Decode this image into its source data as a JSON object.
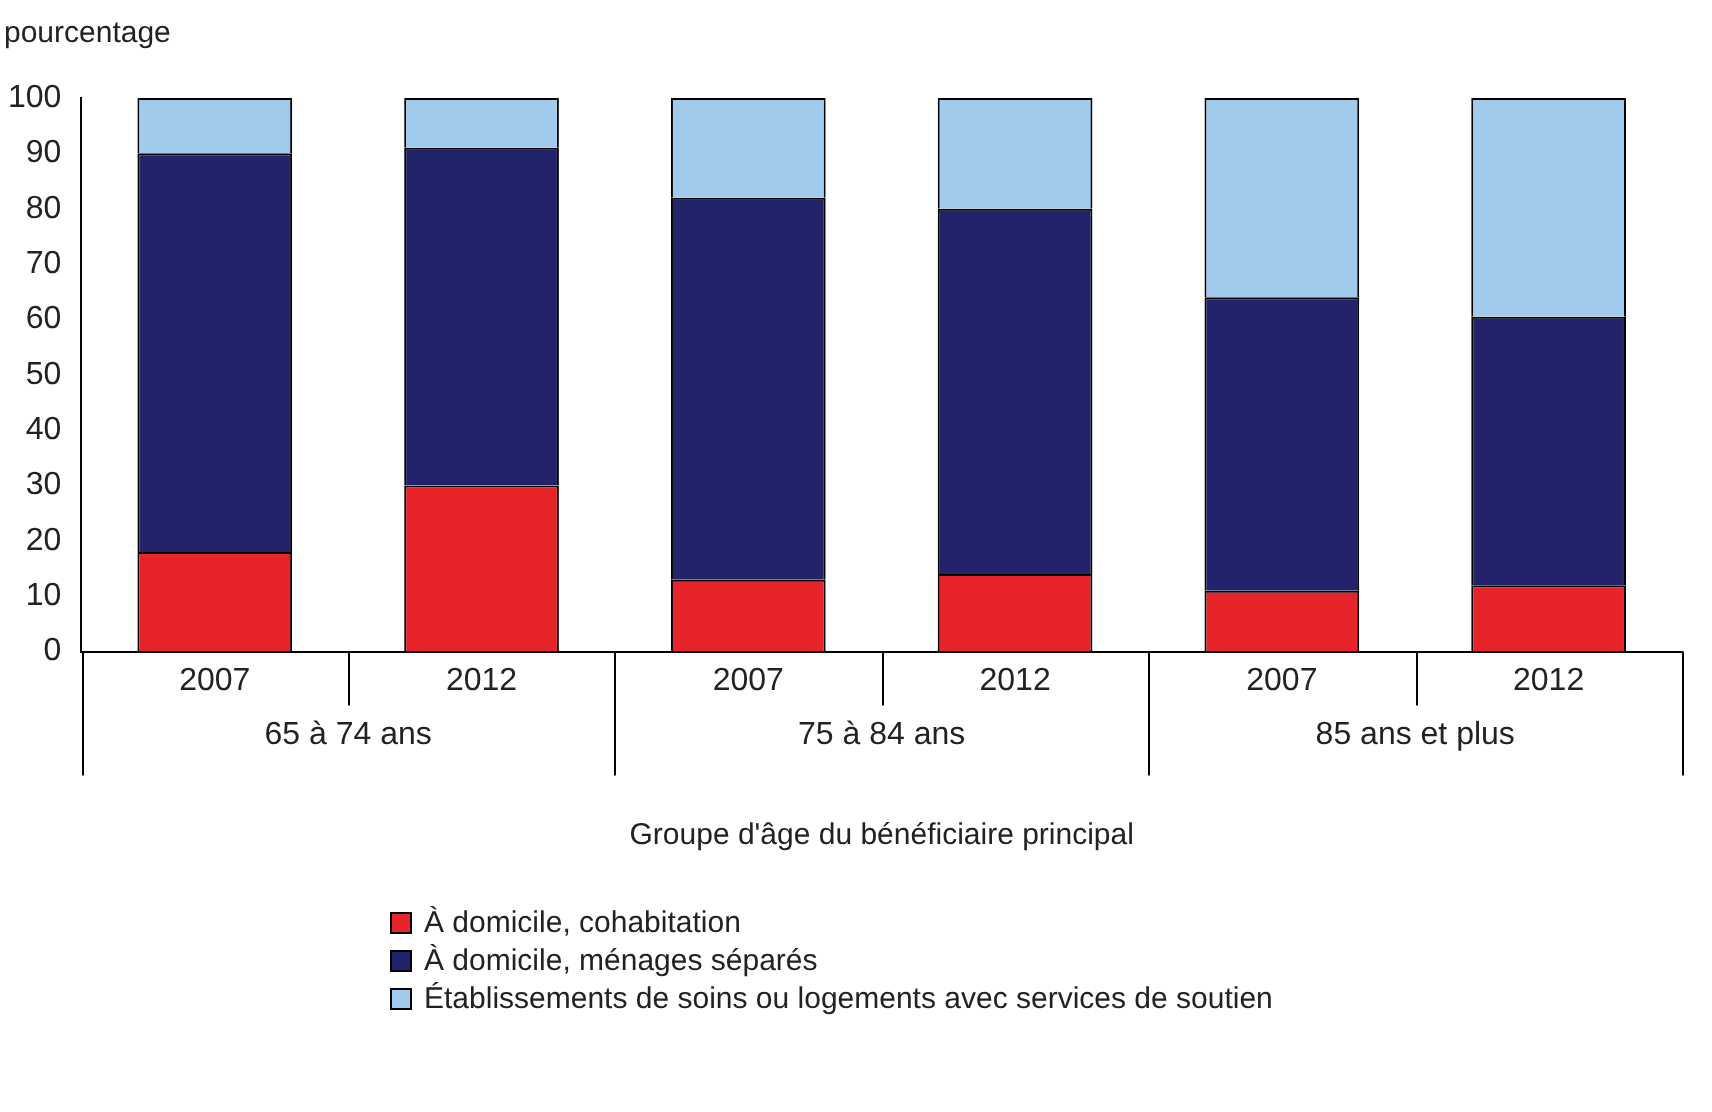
{
  "chart_data": {
    "type": "bar",
    "stacked": true,
    "ylabel": "pourcentage",
    "xlabel": "Groupe d'âge du bénéficiaire principal",
    "categories": [
      "2007",
      "2012",
      "2007",
      "2012",
      "2007",
      "2012"
    ],
    "annotations": [
      "65 à 74 ans",
      "75 à 84 ans",
      "85 ans et plus"
    ],
    "series": [
      {
        "name": "À domicile, cohabitation",
        "color": "#e8242b",
        "values": [
          18,
          30,
          13,
          14,
          11,
          12
        ]
      },
      {
        "name": "À domicile, ménages séparés",
        "color": "#22236b",
        "values": [
          72,
          61,
          69,
          66,
          53,
          48.5
        ]
      },
      {
        "name": "Établissements de soins ou logements avec services de soutien",
        "color": "#a0cbec",
        "values": [
          10,
          9,
          18,
          20,
          36,
          39.5
        ]
      }
    ],
    "ylim": [
      0,
      100
    ],
    "yticks": [
      0,
      10,
      20,
      30,
      40,
      50,
      60,
      70,
      80,
      90,
      100
    ],
    "grid": false,
    "legend": "bottom"
  }
}
